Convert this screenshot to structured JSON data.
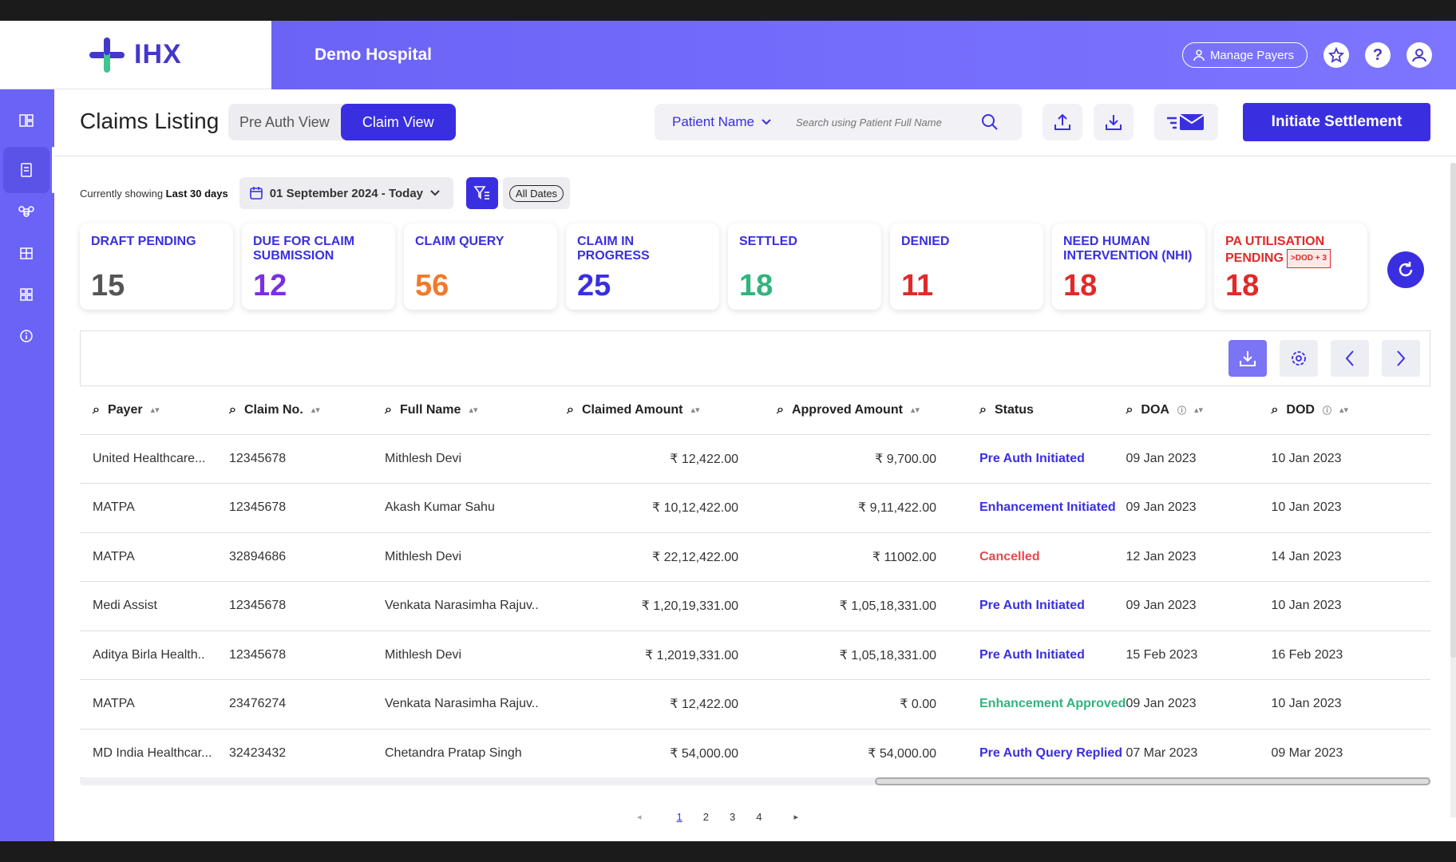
{
  "brand": {
    "logo_text": "IHX",
    "hospital": "Demo Hospital"
  },
  "header": {
    "manage_payers": "Manage Payers"
  },
  "page": {
    "title": "Claims Listing",
    "views": [
      "Pre Auth View",
      "Claim View"
    ],
    "active_view": "Claim View"
  },
  "search": {
    "field": "Patient Name",
    "placeholder": "Search using Patient Full Name"
  },
  "actions": {
    "initiate": "Initiate Settlement"
  },
  "filters": {
    "prefix": "Currently showing",
    "range": "Last 30 days",
    "date_range": "01 September 2024 - Today",
    "all_dates": "All Dates"
  },
  "cards": [
    {
      "label": "DRAFT PENDING",
      "value": "15",
      "color": "#555555"
    },
    {
      "label": "DUE FOR CLAIM SUBMISSION",
      "value": "12",
      "color": "#7b2fe0"
    },
    {
      "label": "CLAIM QUERY",
      "value": "56",
      "color": "#f07a2c"
    },
    {
      "label": "CLAIM IN PROGRESS",
      "value": "25",
      "color": "#3a2fe0"
    },
    {
      "label": "SETTLED",
      "value": "18",
      "color": "#2fb57d"
    },
    {
      "label": "DENIED",
      "value": "11",
      "color": "#e02a2a"
    },
    {
      "label": "NEED HUMAN INTERVENTION (NHI)",
      "value": "18",
      "color": "#e02a2a"
    },
    {
      "label": "PA UTILISATION PENDING",
      "value": "18",
      "color": "#e02a2a",
      "badge": ">DOD + 3"
    }
  ],
  "table": {
    "columns": [
      "Payer",
      "Claim No.",
      "Full Name",
      "Claimed Amount",
      "Approved Amount",
      "Status",
      "DOA",
      "DOD"
    ],
    "rows": [
      [
        "United Healthcare...",
        "12345678",
        "Mithlesh Devi",
        "₹ 12,422.00",
        "₹ 9,700.00",
        "Pre Auth Initiated",
        "09 Jan 2023",
        "10 Jan 2023"
      ],
      [
        "MATPA",
        "12345678",
        "Akash Kumar Sahu",
        "₹ 10,12,422.00",
        "₹ 9,11,422.00",
        "Enhancement Initiated",
        "09 Jan 2023",
        "10 Jan 2023"
      ],
      [
        "MATPA",
        "32894686",
        "Mithlesh Devi",
        "₹ 22,12,422.00",
        "₹ 11002.00",
        "Cancelled",
        "12 Jan 2023",
        "14 Jan 2023"
      ],
      [
        "Medi Assist",
        "12345678",
        "Venkata Narasimha Rajuv..",
        "₹ 1,20,19,331.00",
        "₹ 1,05,18,331.00",
        "Pre Auth Initiated",
        "09 Jan 2023",
        "10 Jan 2023"
      ],
      [
        "Aditya Birla Health..",
        "12345678",
        "Mithlesh Devi",
        "₹ 1,2019,331.00",
        "₹ 1,05,18,331.00",
        "Pre Auth Initiated",
        "15 Feb 2023",
        "16 Feb 2023"
      ],
      [
        "MATPA",
        "23476274",
        "Venkata Narasimha Rajuv..",
        "₹ 12,422.00",
        "₹ 0.00",
        "Enhancement Approved",
        "09 Jan 2023",
        "10 Jan 2023"
      ],
      [
        "MD India Healthcar...",
        "32423432",
        "Chetandra Pratap Singh",
        "₹ 54,000.00",
        "₹ 54,000.00",
        "Pre Auth Query Replied",
        "07 Mar 2023",
        "09 Mar 2023"
      ]
    ],
    "status_colors": {
      "Pre Auth Initiated": "blue",
      "Enhancement Initiated": "blue",
      "Cancelled": "red",
      "Enhancement Approved": "green",
      "Pre Auth Query Replied": "blue"
    }
  },
  "pagination": {
    "pages": [
      "1",
      "2",
      "3",
      "4"
    ],
    "current": "1"
  }
}
